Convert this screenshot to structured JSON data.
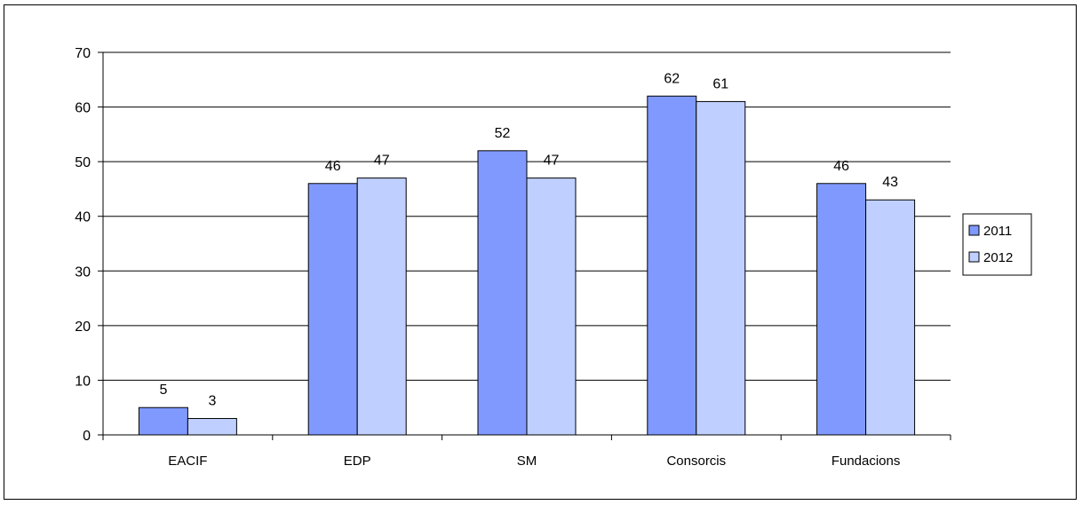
{
  "chart_data": {
    "type": "bar",
    "categories": [
      "EACIF",
      "EDP",
      "SM",
      "Consorcis",
      "Fundacions"
    ],
    "series": [
      {
        "name": "2011",
        "values": [
          5,
          46,
          52,
          62,
          46
        ],
        "color": "#8099ff"
      },
      {
        "name": "2012",
        "values": [
          3,
          47,
          47,
          61,
          43
        ],
        "color": "#bfcfff"
      }
    ],
    "data_labels": true,
    "ylim": [
      0,
      70
    ],
    "yticks": [
      0,
      10,
      20,
      30,
      40,
      50,
      60,
      70
    ],
    "grid": true,
    "legend_position": "right",
    "title": "",
    "xlabel": "",
    "ylabel": ""
  }
}
